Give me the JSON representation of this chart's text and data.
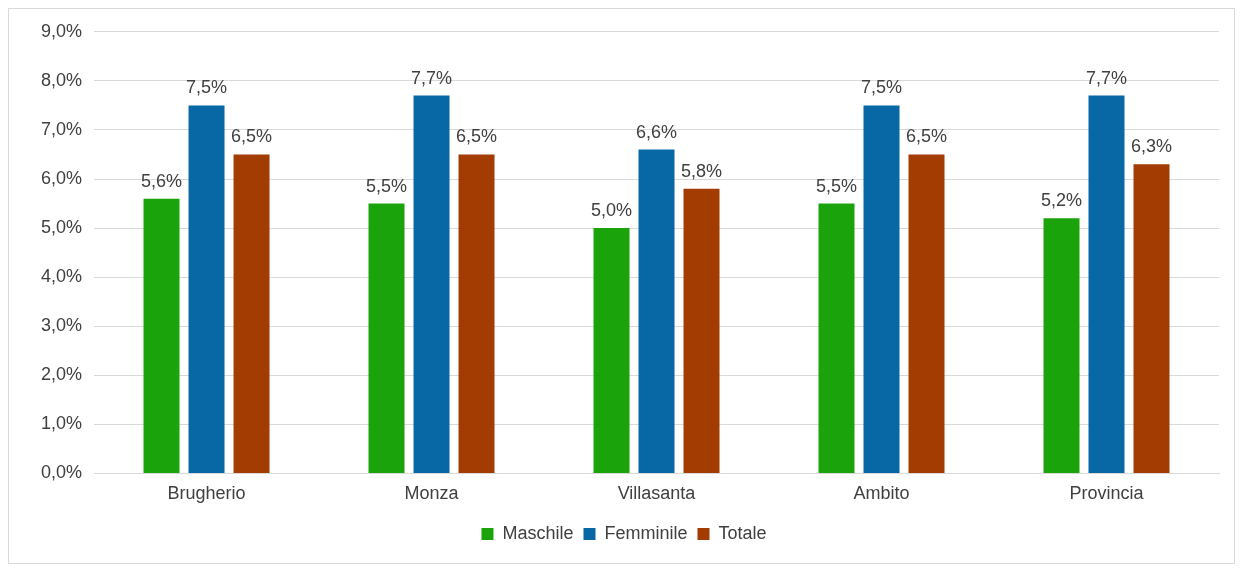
{
  "chart_data": {
    "type": "bar",
    "categories": [
      "Brugherio",
      "Monza",
      "Villasanta",
      "Ambito",
      "Provincia"
    ],
    "series": [
      {
        "name": "Maschile",
        "color": "#1aa30a",
        "values": [
          5.6,
          5.5,
          5.0,
          5.5,
          5.2
        ],
        "value_labels": [
          "5,6%",
          "5,5%",
          "5,0%",
          "5,5%",
          "5,2%"
        ]
      },
      {
        "name": "Femminile",
        "color": "#0868a6",
        "values": [
          7.5,
          7.7,
          6.6,
          7.5,
          7.7
        ],
        "value_labels": [
          "7,5%",
          "7,7%",
          "6,6%",
          "7,5%",
          "7,7%"
        ]
      },
      {
        "name": "Totale",
        "color": "#a33c02",
        "values": [
          6.5,
          6.5,
          5.8,
          6.5,
          6.3
        ],
        "value_labels": [
          "6,5%",
          "6,5%",
          "5,8%",
          "6,5%",
          "6,3%"
        ]
      }
    ],
    "ylim": [
      0,
      9
    ],
    "yticks": [
      {
        "value": 0,
        "label": "0,0%"
      },
      {
        "value": 1,
        "label": "1,0%"
      },
      {
        "value": 2,
        "label": "2,0%"
      },
      {
        "value": 3,
        "label": "3,0%"
      },
      {
        "value": 4,
        "label": "4,0%"
      },
      {
        "value": 5,
        "label": "5,0%"
      },
      {
        "value": 6,
        "label": "6,0%"
      },
      {
        "value": 7,
        "label": "7,0%"
      },
      {
        "value": 8,
        "label": "8,0%"
      },
      {
        "value": 9,
        "label": "9,0%"
      }
    ],
    "grid": "y",
    "legend": "bottom"
  }
}
